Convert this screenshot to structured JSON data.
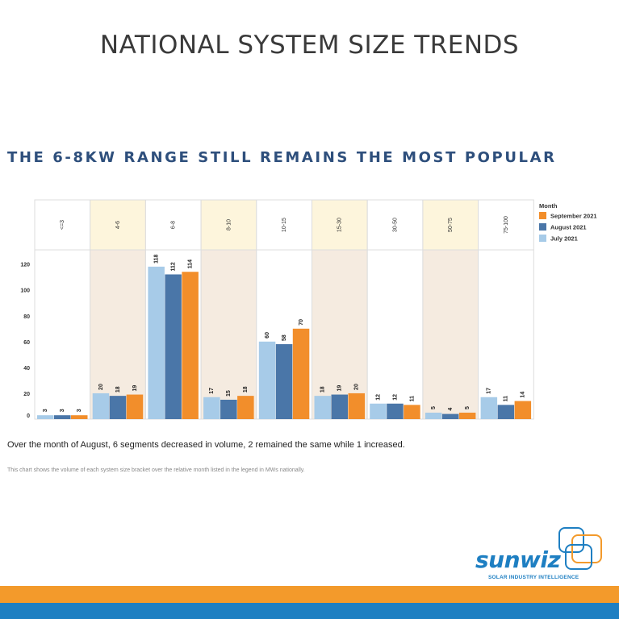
{
  "title": "NATIONAL SYSTEM SIZE TRENDS",
  "subtitle": "THE 6-8KW RANGE STILL REMAINS THE MOST POPULAR",
  "summary": "Over the month of August, 6 segments decreased in volume, 2 remained the same while 1 increased.",
  "footnote": "This chart shows the volume of each system size bracket over the relative month listed in the legend in MWs nationally.",
  "logo": {
    "name": "sunwiz",
    "tagline": "SOLAR INDUSTRY INTELLIGENCE"
  },
  "colors": {
    "july": "#a7cbe8",
    "august": "#4a76a8",
    "september": "#f28e2b",
    "panel_shaded": "#f5ebe0",
    "header_shaded": "#fdf5dc"
  },
  "chart_data": {
    "type": "bar",
    "categories": [
      "<=3",
      "4-6",
      "6-8",
      "8-10",
      "10-15",
      "15-30",
      "30-50",
      "50-75",
      "75-100"
    ],
    "series": [
      {
        "name": "July 2021",
        "values": [
          3,
          20,
          118,
          17,
          60,
          18,
          12,
          5,
          17
        ]
      },
      {
        "name": "August 2021",
        "values": [
          3,
          18,
          112,
          15,
          58,
          19,
          12,
          4,
          11
        ]
      },
      {
        "name": "September 2021",
        "values": [
          3,
          19,
          114,
          18,
          70,
          20,
          11,
          5,
          14
        ]
      }
    ],
    "legend_title": "Month",
    "legend_order": [
      "September 2021",
      "August 2021",
      "July 2021"
    ],
    "legend_position": "right",
    "yticks": [
      0,
      20,
      40,
      60,
      80,
      100,
      120
    ],
    "ylim": [
      0,
      131
    ],
    "xlabel": "",
    "ylabel": "",
    "data_labels": true
  }
}
